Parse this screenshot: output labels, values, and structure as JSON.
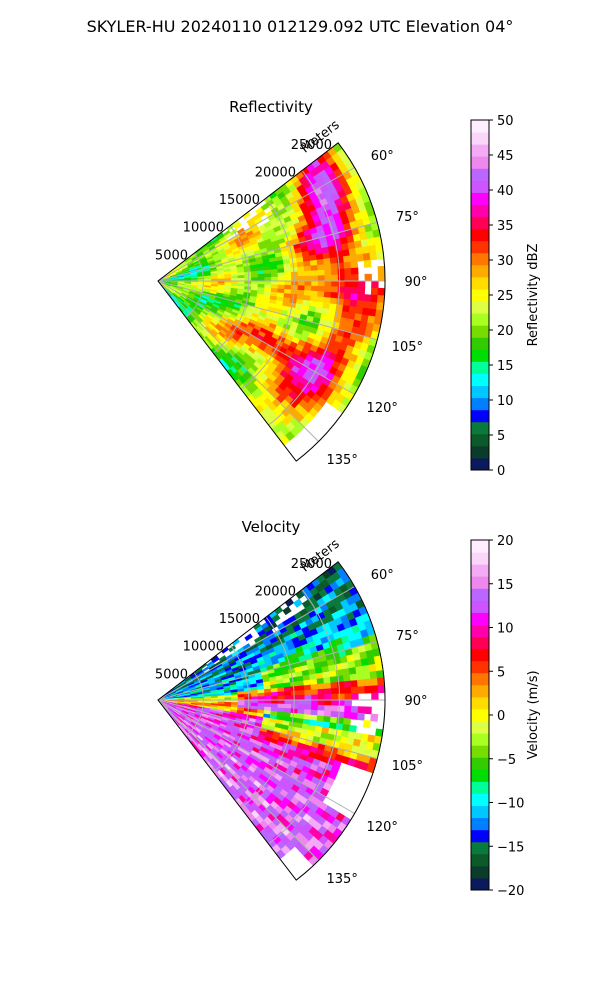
{
  "figure": {
    "suptitle": "SKYLER-HU  20240110  012129.092 UTC Elevation 04°"
  },
  "chart_data": [
    {
      "type": "heatmap",
      "projection": "polar-sector",
      "title": "Reflectivity",
      "field": "reflectivity",
      "range_axis_label": "Meters",
      "range_ticks": [
        5000,
        10000,
        15000,
        20000,
        25000
      ],
      "range_tick_labels": [
        "5000",
        "10000",
        "15000",
        "20000",
        "25000"
      ],
      "max_range_m": 25000,
      "azimuth_ticks": [
        60,
        75,
        90,
        105,
        120,
        135
      ],
      "azimuth_tick_labels": [
        "60°",
        "75°",
        "90°",
        "105°",
        "120°",
        "135°"
      ],
      "azimuth_range_deg": [
        52.5,
        142.5
      ],
      "grid": true,
      "colorbar": {
        "label": "Reflectivity dBZ",
        "range": [
          0,
          50
        ],
        "ticks": [
          0,
          5,
          10,
          15,
          20,
          25,
          30,
          35,
          40,
          45,
          50
        ],
        "tick_labels": [
          "0",
          "5",
          "10",
          "15",
          "20",
          "25",
          "30",
          "35",
          "40",
          "45",
          "50"
        ]
      },
      "colormap": [
        "#0a1a5c",
        "#0b3b2a",
        "#0a5a2a",
        "#0a7a3c",
        "#0000ff",
        "#0080ff",
        "#00c8ff",
        "#00ffff",
        "#00ff99",
        "#00dd00",
        "#33cc00",
        "#77dd00",
        "#aaff22",
        "#ddff44",
        "#ffff00",
        "#ffdd00",
        "#ffaa00",
        "#ff7700",
        "#ff3300",
        "#ff0000",
        "#ff0055",
        "#ff00aa",
        "#ff00ff",
        "#cc55ff",
        "#bb66ff",
        "#ee88ee",
        "#f4aaf4",
        "#fbd6fb",
        "#ffeeff"
      ]
    },
    {
      "type": "heatmap",
      "projection": "polar-sector",
      "title": "Velocity",
      "field": "velocity",
      "range_axis_label": "Meters",
      "range_ticks": [
        5000,
        10000,
        15000,
        20000,
        25000
      ],
      "range_tick_labels": [
        "5000",
        "10000",
        "15000",
        "20000",
        "25000"
      ],
      "max_range_m": 25000,
      "azimuth_ticks": [
        60,
        75,
        90,
        105,
        120,
        135
      ],
      "azimuth_tick_labels": [
        "60°",
        "75°",
        "90°",
        "105°",
        "120°",
        "135°"
      ],
      "azimuth_range_deg": [
        52.5,
        142.5
      ],
      "grid": true,
      "colorbar": {
        "label": "Velocity (m/s)",
        "range": [
          -20,
          20
        ],
        "ticks": [
          -20,
          -15,
          -10,
          -5,
          0,
          5,
          10,
          15,
          20
        ],
        "tick_labels": [
          "−20",
          "−15",
          "−10",
          "−5",
          "0",
          "5",
          "10",
          "15",
          "20"
        ]
      },
      "colormap": [
        "#0a1a5c",
        "#0b3b2a",
        "#0a5a2a",
        "#0a7a3c",
        "#0000ff",
        "#0080ff",
        "#00c8ff",
        "#00ffff",
        "#00ff99",
        "#00dd00",
        "#33cc00",
        "#77dd00",
        "#aaff22",
        "#ddff44",
        "#ffff00",
        "#ffdd00",
        "#ffaa00",
        "#ff7700",
        "#ff3300",
        "#ff0000",
        "#ff0055",
        "#ff00aa",
        "#ff00ff",
        "#cc55ff",
        "#bb66ff",
        "#ee88ee",
        "#f4aaf4",
        "#fbd6fb",
        "#ffeeff"
      ]
    }
  ]
}
